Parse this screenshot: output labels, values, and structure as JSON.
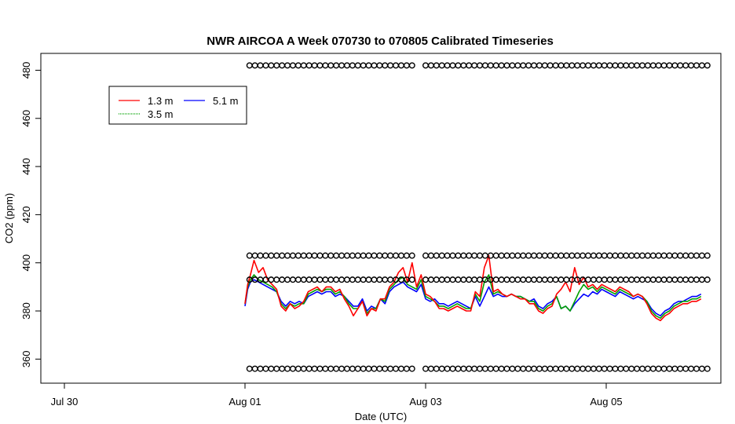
{
  "chart_data": {
    "type": "line",
    "title": "NWR AIRCOA A  Week 070730 to 070805  Calibrated Timeseries",
    "xlabel": "Date (UTC)",
    "ylabel": "CO2 (ppm)",
    "xlim": [
      0,
      7.35
    ],
    "ylim": [
      350,
      487
    ],
    "x_ticks": [
      {
        "x": 0,
        "label": "Jul 30"
      },
      {
        "x": 2,
        "label": "Aug 01"
      },
      {
        "x": 4,
        "label": "Aug 03"
      },
      {
        "x": 6,
        "label": "Aug 05"
      }
    ],
    "y_ticks": [
      {
        "y": 360,
        "label": "360"
      },
      {
        "y": 380,
        "label": "380"
      },
      {
        "y": 400,
        "label": "400"
      },
      {
        "y": 420,
        "label": "420"
      },
      {
        "y": 440,
        "label": "440"
      },
      {
        "y": 460,
        "label": "460"
      },
      {
        "y": 480,
        "label": "480"
      }
    ],
    "grid": false,
    "legend_position": "top-left",
    "legend": [
      {
        "name": "1.3 m",
        "color": "#ff0000"
      },
      {
        "name": "5.1 m",
        "color": "#0000ff"
      },
      {
        "name": "3.5 m",
        "color": "#00a000"
      }
    ],
    "series": [
      {
        "name": "5.1 m",
        "color": "#0000ff",
        "x": [
          2.0,
          2.03,
          2.06,
          2.1,
          2.15,
          2.2,
          2.25,
          2.3,
          2.35,
          2.4,
          2.45,
          2.5,
          2.55,
          2.6,
          2.65,
          2.7,
          2.75,
          2.8,
          2.85,
          2.9,
          2.95,
          3.0,
          3.05,
          3.1,
          3.15,
          3.2,
          3.25,
          3.3,
          3.35,
          3.4,
          3.45,
          3.5,
          3.55,
          3.6,
          3.65,
          3.7,
          3.75,
          3.8,
          3.85,
          3.9,
          3.95,
          4.0,
          4.05,
          4.1,
          4.15,
          4.2,
          4.25,
          4.3,
          4.35,
          4.4,
          4.45,
          4.5,
          4.55,
          4.6,
          4.65,
          4.7,
          4.75,
          4.8,
          4.85,
          4.9,
          4.95,
          5.0,
          5.05,
          5.1,
          5.15,
          5.2,
          5.25,
          5.3,
          5.35,
          5.4,
          5.45,
          5.5,
          5.55,
          5.6,
          5.65,
          5.7,
          5.75,
          5.8,
          5.85,
          5.9,
          5.95,
          6.0,
          6.05,
          6.1,
          6.15,
          6.2,
          6.25,
          6.3,
          6.35,
          6.4,
          6.45,
          6.5,
          6.55,
          6.6,
          6.65,
          6.7,
          6.75,
          6.8,
          6.85,
          6.9,
          6.95,
          7.0,
          7.05
        ],
        "y": [
          382,
          389,
          392,
          393,
          392,
          391,
          390,
          389,
          388,
          384,
          382,
          384,
          383,
          384,
          383,
          386,
          387,
          388,
          387,
          388,
          388,
          386,
          387,
          386,
          384,
          382,
          382,
          385,
          380,
          382,
          381,
          385,
          383,
          388,
          390,
          391,
          392,
          390,
          389,
          388,
          391,
          385,
          384,
          385,
          383,
          383,
          382,
          383,
          384,
          383,
          382,
          381,
          386,
          382,
          386,
          390,
          386,
          387,
          386,
          386,
          387,
          386,
          386,
          385,
          384,
          385,
          382,
          381,
          383,
          384,
          386,
          381,
          382,
          380,
          383,
          385,
          387,
          386,
          388,
          387,
          389,
          388,
          387,
          386,
          388,
          387,
          386,
          385,
          386,
          385,
          384,
          381,
          379,
          378,
          380,
          381,
          383,
          384,
          384,
          385,
          386,
          386,
          387
        ]
      },
      {
        "name": "3.5 m",
        "color": "#00a000",
        "x": [
          2.0,
          2.03,
          2.06,
          2.1,
          2.15,
          2.2,
          2.25,
          2.3,
          2.35,
          2.4,
          2.45,
          2.5,
          2.55,
          2.6,
          2.65,
          2.7,
          2.75,
          2.8,
          2.85,
          2.9,
          2.95,
          3.0,
          3.05,
          3.1,
          3.15,
          3.2,
          3.25,
          3.3,
          3.35,
          3.4,
          3.45,
          3.5,
          3.55,
          3.6,
          3.65,
          3.7,
          3.75,
          3.8,
          3.85,
          3.9,
          3.95,
          4.0,
          4.05,
          4.1,
          4.15,
          4.2,
          4.25,
          4.3,
          4.35,
          4.4,
          4.45,
          4.5,
          4.55,
          4.6,
          4.65,
          4.7,
          4.75,
          4.8,
          4.85,
          4.9,
          4.95,
          5.0,
          5.05,
          5.1,
          5.15,
          5.2,
          5.25,
          5.3,
          5.35,
          5.4,
          5.45,
          5.5,
          5.55,
          5.6,
          5.65,
          5.7,
          5.75,
          5.8,
          5.85,
          5.9,
          5.95,
          6.0,
          6.05,
          6.1,
          6.15,
          6.2,
          6.25,
          6.3,
          6.35,
          6.4,
          6.45,
          6.5,
          6.55,
          6.6,
          6.65,
          6.7,
          6.75,
          6.8,
          6.85,
          6.9,
          6.95,
          7.0,
          7.05
        ],
        "y": [
          383,
          390,
          393,
          395,
          393,
          392,
          391,
          390,
          388,
          383,
          381,
          383,
          382,
          383,
          383,
          387,
          388,
          389,
          388,
          389,
          389,
          387,
          388,
          386,
          383,
          381,
          381,
          384,
          379,
          381,
          381,
          385,
          384,
          389,
          391,
          393,
          394,
          391,
          390,
          389,
          393,
          386,
          385,
          384,
          382,
          382,
          381,
          382,
          383,
          382,
          381,
          381,
          387,
          384,
          392,
          395,
          387,
          388,
          387,
          386,
          387,
          386,
          386,
          385,
          384,
          384,
          381,
          380,
          382,
          383,
          386,
          381,
          382,
          380,
          384,
          388,
          391,
          389,
          390,
          388,
          390,
          389,
          388,
          387,
          389,
          388,
          387,
          386,
          387,
          386,
          384,
          380,
          378,
          377,
          379,
          380,
          382,
          383,
          384,
          384,
          385,
          385,
          386
        ]
      },
      {
        "name": "1.3 m",
        "color": "#ff0000",
        "x": [
          2.0,
          2.03,
          2.06,
          2.1,
          2.15,
          2.2,
          2.25,
          2.3,
          2.35,
          2.4,
          2.45,
          2.5,
          2.55,
          2.6,
          2.65,
          2.7,
          2.75,
          2.8,
          2.85,
          2.9,
          2.95,
          3.0,
          3.05,
          3.1,
          3.15,
          3.2,
          3.25,
          3.3,
          3.35,
          3.4,
          3.45,
          3.5,
          3.55,
          3.6,
          3.65,
          3.7,
          3.75,
          3.8,
          3.85,
          3.9,
          3.95,
          4.0,
          4.05,
          4.1,
          4.15,
          4.2,
          4.25,
          4.3,
          4.35,
          4.4,
          4.45,
          4.5,
          4.55,
          4.6,
          4.65,
          4.7,
          4.75,
          4.8,
          4.85,
          4.9,
          4.95,
          5.0,
          5.05,
          5.1,
          5.15,
          5.2,
          5.25,
          5.3,
          5.35,
          5.4,
          5.45,
          5.5,
          5.55,
          5.6,
          5.65,
          5.7,
          5.75,
          5.8,
          5.85,
          5.9,
          5.95,
          6.0,
          6.05,
          6.1,
          6.15,
          6.2,
          6.25,
          6.3,
          6.35,
          6.4,
          6.45,
          6.5,
          6.55,
          6.6,
          6.65,
          6.7,
          6.75,
          6.8,
          6.85,
          6.9,
          6.95,
          7.0,
          7.05
        ],
        "y": [
          383,
          391,
          395,
          401,
          396,
          398,
          393,
          391,
          389,
          382,
          380,
          383,
          381,
          382,
          384,
          388,
          389,
          390,
          388,
          390,
          390,
          388,
          389,
          385,
          382,
          378,
          381,
          384,
          378,
          381,
          380,
          385,
          385,
          390,
          392,
          396,
          398,
          392,
          400,
          390,
          395,
          387,
          386,
          384,
          381,
          381,
          380,
          381,
          382,
          381,
          380,
          380,
          388,
          386,
          398,
          403,
          388,
          389,
          387,
          386,
          387,
          386,
          385,
          385,
          383,
          383,
          380,
          379,
          381,
          382,
          387,
          389,
          392,
          388,
          398,
          391,
          394,
          390,
          391,
          389,
          391,
          390,
          389,
          388,
          390,
          389,
          388,
          386,
          387,
          386,
          383,
          379,
          377,
          376,
          378,
          379,
          381,
          382,
          383,
          383,
          384,
          384,
          385
        ]
      },
      {
        "name": "calibration-markers",
        "type": "scatter",
        "color": "#000000",
        "levels": [
          356,
          393,
          403,
          482
        ],
        "x": [
          2.05,
          2.11,
          2.17,
          2.23,
          2.29,
          2.35,
          2.41,
          2.47,
          2.53,
          2.59,
          2.65,
          2.71,
          2.77,
          2.83,
          2.89,
          2.95,
          3.01,
          3.07,
          3.13,
          3.19,
          3.25,
          3.31,
          3.37,
          3.43,
          3.49,
          3.55,
          3.61,
          3.67,
          3.73,
          3.79,
          3.85,
          4.0,
          4.06,
          4.12,
          4.18,
          4.24,
          4.3,
          4.36,
          4.42,
          4.48,
          4.54,
          4.6,
          4.66,
          4.72,
          4.78,
          4.84,
          4.9,
          4.96,
          5.02,
          5.08,
          5.14,
          5.2,
          5.26,
          5.32,
          5.38,
          5.44,
          5.5,
          5.56,
          5.62,
          5.68,
          5.74,
          5.8,
          5.86,
          5.92,
          5.98,
          6.04,
          6.1,
          6.16,
          6.22,
          6.28,
          6.34,
          6.4,
          6.46,
          6.52,
          6.58,
          6.64,
          6.7,
          6.76,
          6.82,
          6.88,
          6.94,
          7.0,
          7.06,
          7.12
        ]
      }
    ]
  }
}
